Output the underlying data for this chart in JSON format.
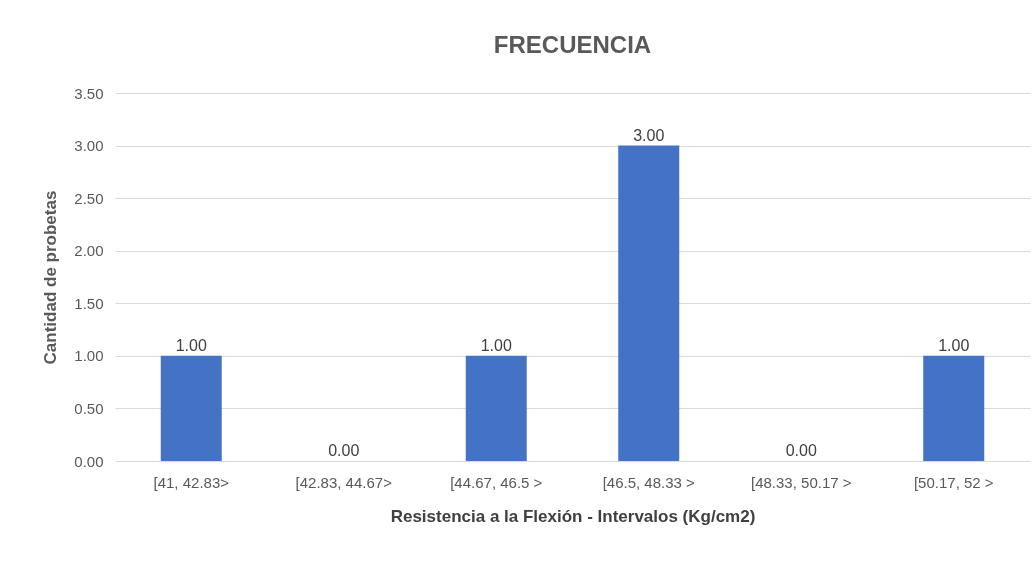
{
  "chart_data": {
    "type": "bar",
    "title": "FRECUENCIA",
    "xlabel": "Resistencia a la Flexión - Intervalos (Kg/cm2)",
    "ylabel": "Cantidad de probetas",
    "categories": [
      "[41, 42.83>",
      "[42.83, 44.67>",
      "[44.67, 46.5 >",
      "[46.5, 48.33 >",
      "[48.33, 50.17 >",
      "[50.17, 52 >"
    ],
    "values": [
      1,
      0,
      1,
      3,
      0,
      1
    ],
    "value_labels": [
      "1.00",
      "0.00",
      "1.00",
      "3.00",
      "0.00",
      "1.00"
    ],
    "color": "#4472c4",
    "ylim": [
      0,
      3.5
    ],
    "yticks": [
      {
        "value": 0,
        "label": "0.00"
      },
      {
        "value": 0.5,
        "label": "0.50"
      },
      {
        "value": 1,
        "label": "1.00"
      },
      {
        "value": 1.5,
        "label": "1.50"
      },
      {
        "value": 2,
        "label": "2.00"
      },
      {
        "value": 2.5,
        "label": "2.50"
      },
      {
        "value": 3,
        "label": "3.00"
      },
      {
        "value": 3.5,
        "label": "3.50"
      }
    ],
    "grid": "y"
  }
}
